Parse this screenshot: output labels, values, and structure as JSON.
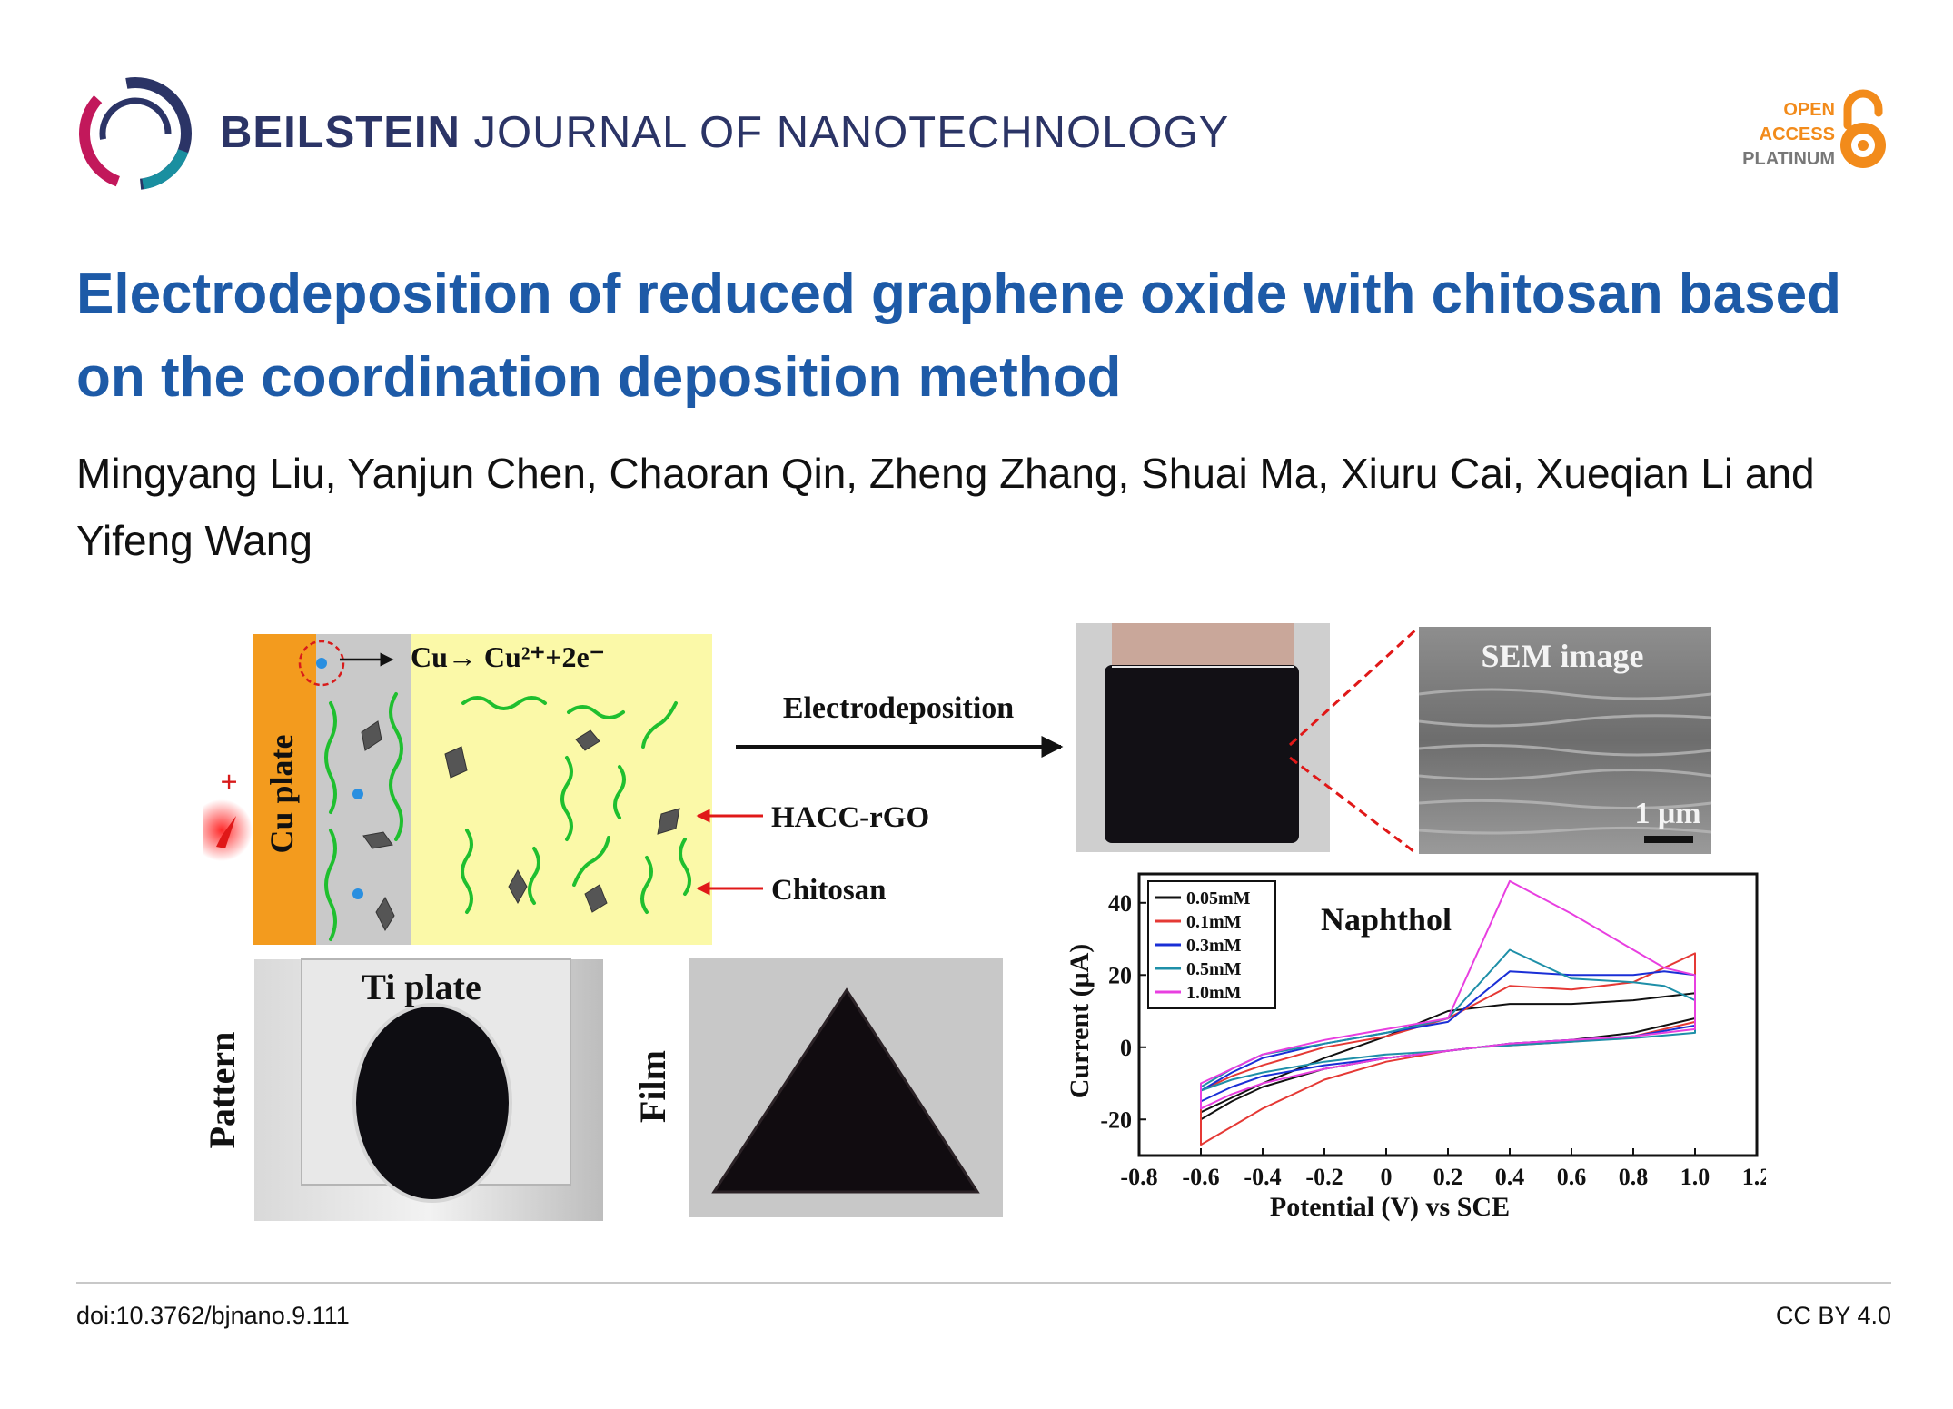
{
  "header": {
    "journal_bold": "BEILSTEIN",
    "journal_rest": "JOURNAL OF NANOTECHNOLOGY",
    "badge": {
      "line1": "OPEN",
      "line2": "ACCESS",
      "line3": "PLATINUM"
    }
  },
  "article": {
    "title": "Electrodeposition of reduced graphene oxide with chitosan based on the coordination deposition method",
    "authors": "Mingyang Liu, Yanjun Chen, Chaoran Qin, Zheng Zhang, Shuai Ma, Xiuru Cai, Xueqian Li and Yifeng Wang"
  },
  "figure": {
    "scheme": {
      "plate_label": "Cu plate",
      "plus_sign": "+",
      "reaction": "Cu→ Cu²⁺+2e⁻",
      "arrow_label": "Electrodeposition",
      "label_hacc": "HACC-rGO",
      "label_chitosan": "Chitosan"
    },
    "sem": {
      "title": "SEM image",
      "scale": "1 μm"
    },
    "pattern": {
      "side_label": "Pattern",
      "top_label": "Ti plate"
    },
    "film": {
      "side_label": "Film"
    }
  },
  "chart_data": {
    "type": "line",
    "title": "Naphthol",
    "xlabel": "Potential (V)  vs  SCE",
    "ylabel": "Current (μA)",
    "xlim": [
      -0.8,
      1.2
    ],
    "ylim": [
      -30,
      48
    ],
    "xticks": [
      "-0.8",
      "-0.6",
      "-0.4",
      "-0.2",
      "0",
      "0.2",
      "0.4",
      "0.6",
      "0.8",
      "1.0",
      "1.2"
    ],
    "xtick_values": [
      -0.8,
      -0.6,
      -0.4,
      -0.2,
      0,
      0.2,
      0.4,
      0.6,
      0.8,
      1.0,
      1.2
    ],
    "yticks": [
      "-20",
      "0",
      "20",
      "40"
    ],
    "ytick_values": [
      -20,
      0,
      20,
      40
    ],
    "legend_position": "top-left",
    "series": [
      {
        "name": "0.05mM",
        "color": "#111111",
        "x": [
          -0.6,
          -0.5,
          -0.4,
          -0.2,
          0,
          0.2,
          0.3,
          0.4,
          0.5,
          0.6,
          0.8,
          1.0,
          1.0,
          0.9,
          0.8,
          0.6,
          0.4,
          0.2,
          0,
          -0.2,
          -0.4,
          -0.5,
          -0.6
        ],
        "y": [
          -20,
          -15,
          -11,
          -6,
          -3,
          -1,
          0,
          1,
          1.5,
          2,
          4,
          8,
          15,
          14,
          13,
          12,
          12,
          10,
          3,
          -3,
          -10,
          -14,
          -18
        ]
      },
      {
        "name": "0.1mM",
        "color": "#e53935",
        "x": [
          -0.6,
          -0.5,
          -0.4,
          -0.2,
          0,
          0.2,
          0.3,
          0.4,
          0.5,
          0.6,
          0.8,
          1.0,
          1.0,
          0.9,
          0.8,
          0.6,
          0.4,
          0.2,
          0,
          -0.2,
          -0.4,
          -0.5,
          -0.6
        ],
        "y": [
          -27,
          -22,
          -17,
          -9,
          -4,
          -1,
          0,
          0.5,
          1,
          1.5,
          3,
          7,
          26,
          22,
          18,
          16,
          17,
          8,
          3,
          0,
          -5,
          -8,
          -12
        ]
      },
      {
        "name": "0.3mM",
        "color": "#1a2fd6",
        "x": [
          -0.6,
          -0.5,
          -0.4,
          -0.2,
          0,
          0.2,
          0.3,
          0.4,
          0.5,
          0.6,
          0.8,
          1.0,
          1.0,
          0.9,
          0.8,
          0.6,
          0.4,
          0.2,
          0,
          -0.2,
          -0.4,
          -0.5,
          -0.6
        ],
        "y": [
          -15,
          -11,
          -8,
          -5,
          -3,
          -1,
          0,
          1,
          1.5,
          2,
          3,
          6,
          20,
          21,
          20,
          20,
          21,
          7,
          4,
          1,
          -3,
          -7,
          -12
        ]
      },
      {
        "name": "0.5mM",
        "color": "#1e8fa8",
        "x": [
          -0.6,
          -0.5,
          -0.4,
          -0.2,
          0,
          0.2,
          0.3,
          0.4,
          0.5,
          0.6,
          0.8,
          1.0,
          1.0,
          0.9,
          0.8,
          0.6,
          0.4,
          0.2,
          0,
          -0.2,
          -0.4,
          -0.5,
          -0.6
        ],
        "y": [
          -12,
          -9,
          -7,
          -4,
          -2,
          -1,
          0,
          0.5,
          1,
          1.5,
          2.5,
          4,
          13,
          17,
          18,
          19,
          27,
          8,
          4,
          1,
          -2,
          -6,
          -11
        ]
      },
      {
        "name": "1.0mM",
        "color": "#e83fe0",
        "x": [
          -0.6,
          -0.5,
          -0.4,
          -0.2,
          0,
          0.2,
          0.3,
          0.4,
          0.5,
          0.6,
          0.8,
          1.0,
          1.0,
          0.9,
          0.8,
          0.6,
          0.4,
          0.2,
          0,
          -0.2,
          -0.4,
          -0.5,
          -0.6
        ],
        "y": [
          -17,
          -13,
          -10,
          -6,
          -3,
          -1,
          0,
          1,
          1.5,
          2,
          3,
          5,
          20,
          22,
          27,
          37,
          46,
          8,
          5,
          2,
          -2,
          -6,
          -10
        ]
      }
    ]
  },
  "footer": {
    "doi": "doi:10.3762/bjnano.9.111",
    "license": "CC BY 4.0"
  }
}
